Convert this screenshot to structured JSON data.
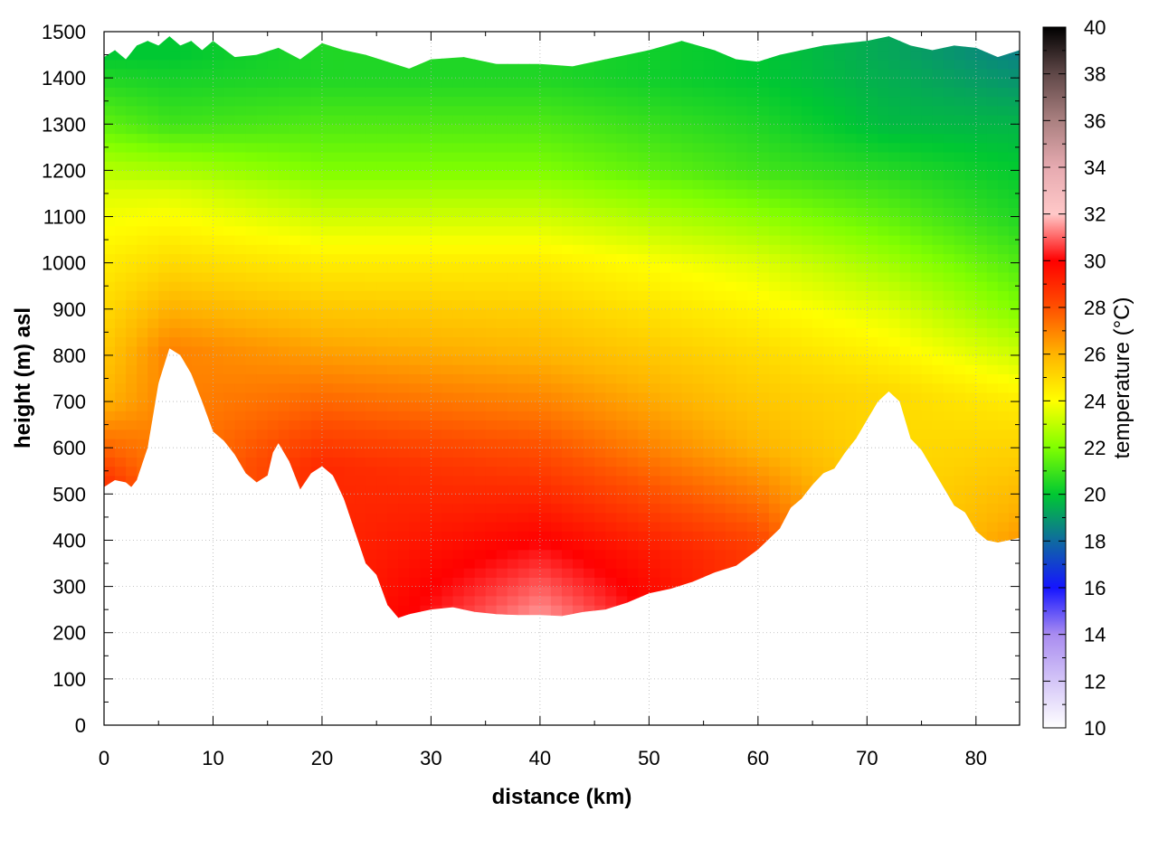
{
  "chart_data": {
    "type": "heatmap",
    "title": "",
    "xlabel": "distance (km)",
    "ylabel": "height (m) asl",
    "xlim": [
      0,
      84
    ],
    "ylim": [
      0,
      1500
    ],
    "x_ticks": [
      0,
      10,
      20,
      30,
      40,
      50,
      60,
      70,
      80
    ],
    "y_ticks": [
      0,
      100,
      200,
      300,
      400,
      500,
      600,
      700,
      800,
      900,
      1000,
      1100,
      1200,
      1300,
      1400,
      1500
    ],
    "grid": true,
    "colorbar": {
      "label": "temperature (°C)",
      "range": [
        10,
        40
      ],
      "ticks": [
        10,
        12,
        14,
        16,
        18,
        20,
        22,
        24,
        26,
        28,
        30,
        32,
        34,
        36,
        38,
        40
      ],
      "stops": [
        {
          "value": 10,
          "color": "#ffffff"
        },
        {
          "value": 14,
          "color": "#a98cf0"
        },
        {
          "value": 16,
          "color": "#1515ff"
        },
        {
          "value": 18,
          "color": "#0f6aa0"
        },
        {
          "value": 20,
          "color": "#00c832"
        },
        {
          "value": 22,
          "color": "#80ff00"
        },
        {
          "value": 24,
          "color": "#ffff00"
        },
        {
          "value": 26,
          "color": "#ffb400"
        },
        {
          "value": 28,
          "color": "#ff5000"
        },
        {
          "value": 30,
          "color": "#ff0000"
        },
        {
          "value": 32,
          "color": "#ffc8c8"
        },
        {
          "value": 34,
          "color": "#e6aab0"
        },
        {
          "value": 36,
          "color": "#aa8080"
        },
        {
          "value": 38,
          "color": "#604848"
        },
        {
          "value": 40,
          "color": "#000000"
        }
      ]
    },
    "terrain": [
      [
        0,
        515
      ],
      [
        1,
        530
      ],
      [
        2,
        525
      ],
      [
        2.5,
        515
      ],
      [
        3,
        530
      ],
      [
        4,
        600
      ],
      [
        5,
        740
      ],
      [
        6,
        815
      ],
      [
        7,
        800
      ],
      [
        8,
        760
      ],
      [
        9,
        700
      ],
      [
        10,
        635
      ],
      [
        11,
        615
      ],
      [
        12,
        585
      ],
      [
        13,
        545
      ],
      [
        14,
        525
      ],
      [
        15,
        540
      ],
      [
        15.5,
        590
      ],
      [
        16,
        610
      ],
      [
        17,
        570
      ],
      [
        18,
        510
      ],
      [
        19,
        545
      ],
      [
        20,
        560
      ],
      [
        21,
        540
      ],
      [
        22,
        490
      ],
      [
        23,
        420
      ],
      [
        24,
        350
      ],
      [
        25,
        325
      ],
      [
        26,
        260
      ],
      [
        27,
        232
      ],
      [
        28,
        240
      ],
      [
        30,
        250
      ],
      [
        32,
        255
      ],
      [
        34,
        245
      ],
      [
        36,
        240
      ],
      [
        38,
        238
      ],
      [
        40,
        238
      ],
      [
        42,
        236
      ],
      [
        44,
        245
      ],
      [
        46,
        250
      ],
      [
        48,
        265
      ],
      [
        50,
        285
      ],
      [
        52,
        295
      ],
      [
        54,
        310
      ],
      [
        56,
        330
      ],
      [
        58,
        345
      ],
      [
        60,
        380
      ],
      [
        62,
        425
      ],
      [
        63,
        470
      ],
      [
        64,
        490
      ],
      [
        65,
        520
      ],
      [
        66,
        545
      ],
      [
        67,
        555
      ],
      [
        68,
        590
      ],
      [
        69,
        620
      ],
      [
        70,
        660
      ],
      [
        71,
        700
      ],
      [
        72,
        722
      ],
      [
        73,
        700
      ],
      [
        74,
        620
      ],
      [
        75,
        595
      ],
      [
        76,
        555
      ],
      [
        77,
        515
      ],
      [
        78,
        475
      ],
      [
        79,
        460
      ],
      [
        80,
        420
      ],
      [
        81,
        400
      ],
      [
        82,
        395
      ],
      [
        83,
        400
      ],
      [
        84,
        405
      ]
    ],
    "top": [
      [
        0,
        1445
      ],
      [
        1,
        1460
      ],
      [
        2,
        1440
      ],
      [
        3,
        1470
      ],
      [
        4,
        1480
      ],
      [
        5,
        1470
      ],
      [
        6,
        1490
      ],
      [
        7,
        1470
      ],
      [
        8,
        1480
      ],
      [
        9,
        1460
      ],
      [
        10,
        1480
      ],
      [
        12,
        1445
      ],
      [
        14,
        1450
      ],
      [
        16,
        1465
      ],
      [
        18,
        1440
      ],
      [
        20,
        1475
      ],
      [
        22,
        1460
      ],
      [
        24,
        1450
      ],
      [
        26,
        1435
      ],
      [
        28,
        1420
      ],
      [
        30,
        1440
      ],
      [
        33,
        1445
      ],
      [
        36,
        1430
      ],
      [
        40,
        1430
      ],
      [
        43,
        1425
      ],
      [
        46,
        1440
      ],
      [
        50,
        1460
      ],
      [
        53,
        1480
      ],
      [
        56,
        1460
      ],
      [
        58,
        1440
      ],
      [
        60,
        1435
      ],
      [
        62,
        1450
      ],
      [
        64,
        1460
      ],
      [
        66,
        1470
      ],
      [
        68,
        1475
      ],
      [
        70,
        1480
      ],
      [
        72,
        1490
      ],
      [
        74,
        1470
      ],
      [
        76,
        1460
      ],
      [
        78,
        1470
      ],
      [
        80,
        1465
      ],
      [
        82,
        1445
      ],
      [
        84,
        1460
      ]
    ],
    "temperature_field": {
      "reference_points": [
        {
          "x": 0,
          "temperatures": [
            [
              515,
              29
            ],
            [
              700,
              26
            ],
            [
              1000,
              24.5
            ],
            [
              1150,
              23.5
            ],
            [
              1300,
              21.5
            ],
            [
              1450,
              20
            ]
          ]
        },
        {
          "x": 6,
          "temperatures": [
            [
              815,
              27
            ],
            [
              1000,
              25
            ],
            [
              1150,
              23.5
            ],
            [
              1300,
              21
            ],
            [
              1450,
              20
            ]
          ]
        },
        {
          "x": 20,
          "temperatures": [
            [
              560,
              29
            ],
            [
              800,
              26.5
            ],
            [
              1000,
              24.5
            ],
            [
              1200,
              22
            ],
            [
              1400,
              20.5
            ]
          ]
        },
        {
          "x": 40,
          "temperatures": [
            [
              240,
              31.5
            ],
            [
              400,
              30
            ],
            [
              600,
              28
            ],
            [
              800,
              26
            ],
            [
              1000,
              24.5
            ],
            [
              1200,
              22
            ],
            [
              1400,
              20.5
            ]
          ]
        },
        {
          "x": 60,
          "temperatures": [
            [
              380,
              28.5
            ],
            [
              600,
              26
            ],
            [
              800,
              25
            ],
            [
              1000,
              23.5
            ],
            [
              1200,
              21
            ],
            [
              1400,
              20
            ]
          ]
        },
        {
          "x": 72,
          "temperatures": [
            [
              722,
              25
            ],
            [
              900,
              23.5
            ],
            [
              1100,
              21.5
            ],
            [
              1300,
              19.7
            ],
            [
              1450,
              19.3
            ]
          ]
        },
        {
          "x": 84,
          "temperatures": [
            [
              405,
              26.5
            ],
            [
              700,
              24.5
            ],
            [
              900,
              22
            ],
            [
              1100,
              20.5
            ],
            [
              1300,
              19.6
            ],
            [
              1450,
              18.5
            ]
          ]
        }
      ]
    }
  }
}
